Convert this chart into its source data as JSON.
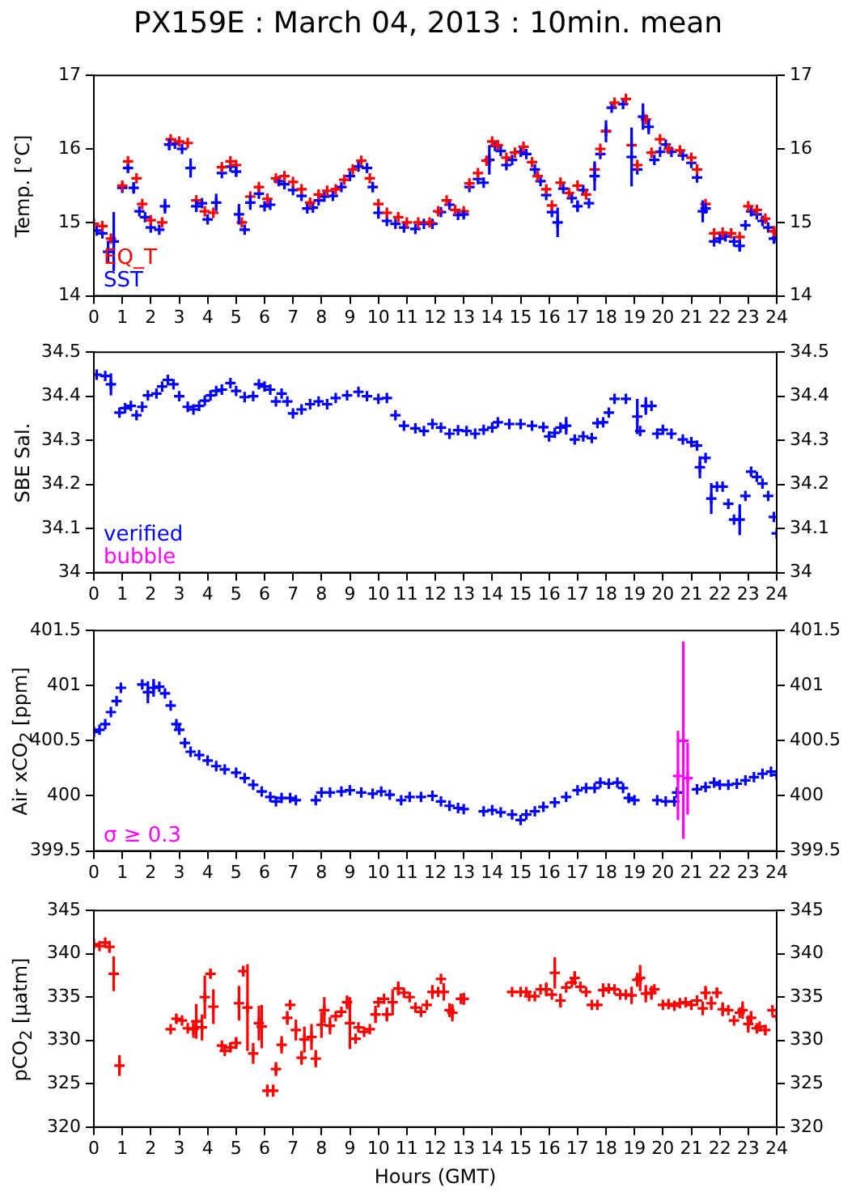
{
  "chart_data": [
    {
      "type": "scatter",
      "title": "PX159E : March 04, 2013 : 10min. mean",
      "ylabel": "Temp. [°C]",
      "xlim": [
        0,
        24
      ],
      "xticks": [
        0,
        1,
        2,
        3,
        4,
        5,
        6,
        7,
        8,
        9,
        10,
        11,
        12,
        13,
        14,
        15,
        16,
        17,
        18,
        19,
        20,
        21,
        22,
        23,
        24
      ],
      "ylim": [
        14,
        17
      ],
      "yticks": [
        14,
        15,
        16,
        17
      ],
      "y2lim": [
        14,
        17
      ],
      "y2ticks": [
        14,
        15,
        16,
        17
      ],
      "grid": false,
      "legend": "bottom left",
      "marker": "cross",
      "series": [
        {
          "name": "EQ_T",
          "color": "#ff0000",
          "x": [
            0,
            0.3,
            0.6,
            1.0,
            1.2,
            1.5,
            1.7,
            2.0,
            2.4,
            2.7,
            3.0,
            3.3,
            3.6,
            3.9,
            4.2,
            4.5,
            4.8,
            5.0,
            5.2,
            5.5,
            5.8,
            6.1,
            6.4,
            6.7,
            7.0,
            7.3,
            7.6,
            7.9,
            8.2,
            8.5,
            8.8,
            9.1,
            9.4,
            9.7,
            10.0,
            10.3,
            10.7,
            11.0,
            11.4,
            11.8,
            12.1,
            12.4,
            12.7,
            13.0,
            13.2,
            13.5,
            13.8,
            14.0,
            14.2,
            14.5,
            14.8,
            15.1,
            15.4,
            15.6,
            15.9,
            16.1,
            16.4,
            16.7,
            17.0,
            17.3,
            17.6,
            17.8,
            18.0,
            18.3,
            18.7,
            18.9,
            19.1,
            19.4,
            19.6,
            19.9,
            20.2,
            20.6,
            21.0,
            21.2,
            21.5,
            21.8,
            22.1,
            22.4,
            22.7,
            23.0,
            23.3,
            23.6,
            23.9,
            24.0
          ],
          "values": [
            14.98,
            14.95,
            14.78,
            15.5,
            15.83,
            15.6,
            15.25,
            15.03,
            15.0,
            16.13,
            16.1,
            16.08,
            15.3,
            15.15,
            15.13,
            15.75,
            15.83,
            15.78,
            15.0,
            15.35,
            15.48,
            15.32,
            15.6,
            15.63,
            15.55,
            15.45,
            15.27,
            15.38,
            15.43,
            15.45,
            15.58,
            15.72,
            15.84,
            15.6,
            15.25,
            15.13,
            15.07,
            15.0,
            15.0,
            15.0,
            15.15,
            15.3,
            15.17,
            15.15,
            15.53,
            15.67,
            15.84,
            16.1,
            16.05,
            15.88,
            15.95,
            16.03,
            15.82,
            15.63,
            15.45,
            15.23,
            15.54,
            15.4,
            15.5,
            15.38,
            15.72,
            16.0,
            16.24,
            16.63,
            16.68,
            16.05,
            15.78,
            16.4,
            15.95,
            16.13,
            16.0,
            15.98,
            15.88,
            15.72,
            15.25,
            14.85,
            14.86,
            14.85,
            14.8,
            15.22,
            15.17,
            15.05,
            14.88,
            14.87
          ]
        },
        {
          "name": "SST",
          "color": "#0000ff",
          "x": [
            0.1,
            0.3,
            0.5,
            0.7,
            1.0,
            1.2,
            1.4,
            1.6,
            1.8,
            2.0,
            2.3,
            2.5,
            2.65,
            2.85,
            3.1,
            3.4,
            3.6,
            3.8,
            4.0,
            4.3,
            4.5,
            4.8,
            5.0,
            5.1,
            5.3,
            5.5,
            5.8,
            6.0,
            6.2,
            6.5,
            6.7,
            7.0,
            7.3,
            7.5,
            7.7,
            7.9,
            8.1,
            8.4,
            8.7,
            9.0,
            9.3,
            9.6,
            9.8,
            10.0,
            10.3,
            10.6,
            10.9,
            11.3,
            11.6,
            11.9,
            12.2,
            12.5,
            12.8,
            13.0,
            13.2,
            13.5,
            13.7,
            13.9,
            14.1,
            14.3,
            14.5,
            14.7,
            15.0,
            15.2,
            15.5,
            15.7,
            15.9,
            16.1,
            16.3,
            16.5,
            16.8,
            17.0,
            17.2,
            17.4,
            17.6,
            17.8,
            18.0,
            18.2,
            18.6,
            18.9,
            19.1,
            19.3,
            19.5,
            19.7,
            19.9,
            20.1,
            20.3,
            20.7,
            21.0,
            21.2,
            21.4,
            21.5,
            21.8,
            22.0,
            22.2,
            22.5,
            22.7,
            22.9,
            23.1,
            23.3,
            23.5,
            23.7,
            23.9,
            24.0
          ],
          "values": [
            14.89,
            14.85,
            14.6,
            14.74,
            15.47,
            15.74,
            15.47,
            15.15,
            15.07,
            14.93,
            14.9,
            15.22,
            16.06,
            16.07,
            16.0,
            15.74,
            15.22,
            15.26,
            15.04,
            15.27,
            15.67,
            15.76,
            15.69,
            15.11,
            14.9,
            15.27,
            15.39,
            15.22,
            15.24,
            15.56,
            15.52,
            15.44,
            15.36,
            15.19,
            15.2,
            15.3,
            15.35,
            15.36,
            15.48,
            15.63,
            15.76,
            15.74,
            15.48,
            15.13,
            15.02,
            14.98,
            14.93,
            14.91,
            14.98,
            14.98,
            15.14,
            15.24,
            15.1,
            15.11,
            15.48,
            15.59,
            15.54,
            15.85,
            16.04,
            15.97,
            15.78,
            15.85,
            15.96,
            15.93,
            15.72,
            15.56,
            15.37,
            15.14,
            15.0,
            15.46,
            15.33,
            15.22,
            15.44,
            15.26,
            15.63,
            15.93,
            16.24,
            16.56,
            16.61,
            15.89,
            15.72,
            16.44,
            16.3,
            15.85,
            15.96,
            16.06,
            15.96,
            15.91,
            15.81,
            15.61,
            15.15,
            15.19,
            14.74,
            14.78,
            14.81,
            14.74,
            14.68,
            14.96,
            15.15,
            15.11,
            15.02,
            14.93,
            14.78,
            14.79
          ],
          "errors": [
            null,
            null,
            0.15,
            0.4,
            null,
            0.05,
            0.08,
            null,
            null,
            null,
            null,
            0.1,
            0.08,
            null,
            null,
            0.13,
            0.08,
            null,
            null,
            0.12,
            null,
            null,
            0.07,
            0.14,
            null,
            0.1,
            null,
            null,
            null,
            null,
            null,
            null,
            null,
            null,
            null,
            null,
            null,
            null,
            null,
            null,
            null,
            null,
            0.07,
            0.08,
            null,
            null,
            null,
            null,
            null,
            null,
            null,
            null,
            null,
            0.05,
            null,
            null,
            null,
            0.2,
            null,
            null,
            null,
            null,
            null,
            null,
            null,
            null,
            null,
            null,
            0.2,
            null,
            null,
            0.08,
            null,
            null,
            0.2,
            null,
            0.15,
            null,
            null,
            0.4,
            null,
            0.18,
            0.1,
            null,
            null,
            null,
            null,
            null,
            null,
            null,
            0.15,
            0.07,
            null,
            null,
            null,
            null,
            0.08,
            null,
            null,
            null,
            null,
            null,
            null,
            null
          ]
        }
      ]
    },
    {
      "type": "scatter",
      "ylabel": "SBE Sal.",
      "xlim": [
        0,
        24
      ],
      "xticks": [
        0,
        1,
        2,
        3,
        4,
        5,
        6,
        7,
        8,
        9,
        10,
        11,
        12,
        13,
        14,
        15,
        16,
        17,
        18,
        19,
        20,
        21,
        22,
        23,
        24
      ],
      "ylim": [
        34,
        34.5
      ],
      "yticks": [
        34,
        34.1,
        34.2,
        34.3,
        34.4,
        34.5
      ],
      "y2lim": [
        34,
        34.5
      ],
      "y2ticks": [
        34,
        34.1,
        34.2,
        34.3,
        34.4,
        34.5
      ],
      "grid": false,
      "legend": "bottom left",
      "marker": "cross",
      "series": [
        {
          "name": "verified",
          "color": "#0000ff",
          "x": [
            0.1,
            0.4,
            0.6,
            0.9,
            1.1,
            1.3,
            1.5,
            1.7,
            1.9,
            2.2,
            2.4,
            2.6,
            2.8,
            3.0,
            3.3,
            3.5,
            3.7,
            3.9,
            4.1,
            4.3,
            4.5,
            4.8,
            5.0,
            5.3,
            5.6,
            5.8,
            6.0,
            6.2,
            6.4,
            6.6,
            6.8,
            7.0,
            7.3,
            7.6,
            7.9,
            8.2,
            8.5,
            8.9,
            9.3,
            9.6,
            10.0,
            10.3,
            10.6,
            10.9,
            11.3,
            11.6,
            11.9,
            12.2,
            12.5,
            12.8,
            13.1,
            13.4,
            13.7,
            14.0,
            14.2,
            14.6,
            15.0,
            15.4,
            15.8,
            16.0,
            16.2,
            16.4,
            16.6,
            16.9,
            17.2,
            17.5,
            17.7,
            17.9,
            18.1,
            18.3,
            18.7,
            19.1,
            19.2,
            19.4,
            19.6,
            19.8,
            20.0,
            20.3,
            20.7,
            21.0,
            21.2,
            21.3,
            21.5,
            21.7,
            21.9,
            22.1,
            22.3,
            22.5,
            22.7,
            22.9,
            23.1,
            23.3,
            23.5,
            23.7,
            23.9,
            24.0
          ],
          "values": [
            34.449,
            34.446,
            34.427,
            34.363,
            34.373,
            34.378,
            34.357,
            34.376,
            34.402,
            34.406,
            34.422,
            34.437,
            34.427,
            34.4,
            34.376,
            34.37,
            34.378,
            34.39,
            34.402,
            34.412,
            34.415,
            34.43,
            34.412,
            34.398,
            34.4,
            34.427,
            34.422,
            34.415,
            34.388,
            34.406,
            34.388,
            34.361,
            34.37,
            34.382,
            34.388,
            34.382,
            34.396,
            34.402,
            34.41,
            34.4,
            34.394,
            34.396,
            34.357,
            34.333,
            34.327,
            34.321,
            34.337,
            34.329,
            34.315,
            34.323,
            34.321,
            34.315,
            34.324,
            34.329,
            34.341,
            34.337,
            34.337,
            34.333,
            34.33,
            34.309,
            34.317,
            34.329,
            34.333,
            34.302,
            34.309,
            34.305,
            34.339,
            34.341,
            34.363,
            34.394,
            34.394,
            34.354,
            34.321,
            34.378,
            34.378,
            34.315,
            34.324,
            34.315,
            34.302,
            34.296,
            34.288,
            34.239,
            34.26,
            34.168,
            34.195,
            34.195,
            34.156,
            34.12,
            34.12,
            34.174,
            34.229,
            34.217,
            34.202,
            34.174,
            34.126,
            34.089
          ],
          "errors": [
            null,
            null,
            0.025,
            null,
            null,
            null,
            null,
            null,
            null,
            null,
            null,
            null,
            null,
            null,
            null,
            null,
            null,
            null,
            null,
            null,
            null,
            null,
            null,
            null,
            null,
            null,
            null,
            null,
            null,
            null,
            null,
            null,
            null,
            null,
            null,
            null,
            null,
            null,
            null,
            null,
            null,
            null,
            null,
            null,
            null,
            null,
            null,
            null,
            null,
            null,
            null,
            null,
            null,
            null,
            null,
            null,
            null,
            null,
            null,
            null,
            null,
            null,
            0.02,
            null,
            null,
            null,
            null,
            null,
            null,
            null,
            null,
            0.04,
            null,
            0.02,
            null,
            null,
            null,
            null,
            null,
            null,
            null,
            0.025,
            null,
            0.035,
            null,
            null,
            null,
            null,
            0.035,
            null,
            null,
            null,
            null,
            null,
            null,
            null
          ]
        },
        {
          "name": "bubble",
          "color": "#ff00ff"
        }
      ]
    },
    {
      "type": "scatter",
      "ylabel": "Air xCO$_{2}$ [ppm]",
      "xlim": [
        0,
        24
      ],
      "xticks": [
        0,
        1,
        2,
        3,
        4,
        5,
        6,
        7,
        8,
        9,
        10,
        11,
        12,
        13,
        14,
        15,
        16,
        17,
        18,
        19,
        20,
        21,
        22,
        23,
        24
      ],
      "ylim": [
        399.5,
        401.5
      ],
      "yticks": [
        399.5,
        400,
        400.5,
        401,
        401.5
      ],
      "y2lim": [
        399.5,
        401.5
      ],
      "y2ticks": [
        399.5,
        400,
        400.5,
        401,
        401.5
      ],
      "grid": false,
      "legend": "bottom left",
      "marker": "cross",
      "series": [
        {
          "color": "#0000ff",
          "x": [
            0.0,
            0.2,
            0.4,
            0.6,
            0.8,
            0.95,
            1.7,
            1.9,
            2.1,
            2.3,
            2.5,
            2.7,
            2.9,
            3.0,
            3.2,
            3.4,
            3.7,
            4.0,
            4.3,
            4.6,
            5.0,
            5.3,
            5.6,
            5.9,
            6.2,
            6.4,
            6.6,
            6.9,
            7.1,
            7.8,
            8.0,
            8.3,
            8.7,
            9.0,
            9.4,
            9.8,
            10.1,
            10.4,
            10.8,
            11.1,
            11.5,
            11.9,
            12.2,
            12.5,
            12.8,
            13.0,
            13.7,
            14.0,
            14.3,
            14.7,
            15.0,
            15.2,
            15.5,
            15.8,
            16.2,
            16.6,
            17.0,
            17.3,
            17.6,
            17.8,
            18.1,
            18.4,
            18.6,
            18.8,
            19.0,
            19.8,
            20.1,
            20.4,
            20.5,
            21.2,
            21.5,
            21.8,
            22.0,
            22.3,
            22.6,
            22.9,
            23.2,
            23.5,
            23.8,
            24.0
          ],
          "values": [
            400.58,
            400.6,
            400.65,
            400.76,
            400.86,
            400.98,
            401.01,
            400.94,
            400.98,
            400.99,
            400.93,
            400.82,
            400.65,
            400.6,
            400.48,
            400.4,
            400.37,
            400.32,
            400.27,
            400.24,
            400.21,
            400.16,
            400.1,
            400.04,
            399.99,
            399.95,
            399.98,
            399.98,
            399.96,
            399.96,
            400.03,
            400.03,
            400.04,
            400.05,
            400.03,
            400.02,
            400.04,
            400.01,
            399.96,
            399.99,
            399.99,
            400.0,
            399.95,
            399.91,
            399.89,
            399.88,
            399.86,
            399.87,
            399.85,
            399.83,
            399.78,
            399.83,
            399.86,
            399.9,
            399.94,
            399.99,
            400.05,
            400.07,
            400.07,
            400.12,
            400.11,
            400.12,
            400.07,
            399.98,
            399.96,
            399.96,
            399.95,
            399.95,
            400.03,
            400.06,
            400.08,
            400.12,
            400.1,
            400.1,
            400.11,
            400.14,
            400.17,
            400.2,
            400.22,
            400.19
          ],
          "errors": [
            null,
            null,
            null,
            null,
            null,
            null,
            null,
            0.1,
            0.08,
            null,
            null,
            null,
            null,
            null,
            null,
            null,
            null,
            null,
            null,
            null,
            null,
            null,
            null,
            null,
            null,
            null,
            null,
            null,
            null,
            null,
            null,
            null,
            null,
            null,
            null,
            null,
            null,
            null,
            null,
            null,
            null,
            null,
            null,
            null,
            null,
            null,
            null,
            null,
            null,
            null,
            null,
            null,
            null,
            null,
            null,
            null,
            null,
            null,
            null,
            null,
            null,
            null,
            null,
            0.04,
            null,
            null,
            null,
            null,
            0.05,
            null,
            null,
            null,
            null,
            null,
            null,
            null,
            null,
            null,
            null,
            null
          ]
        },
        {
          "name": "σ ≥ 0.3",
          "color": "#ff00ff",
          "x": [
            20.53,
            20.72,
            20.87
          ],
          "values": [
            400.18,
            400.5,
            400.16
          ],
          "errors": [
            [
              399.78,
              400.59
            ],
            [
              399.61,
              401.4
            ],
            [
              399.83,
              400.48
            ]
          ]
        }
      ]
    },
    {
      "type": "scatter",
      "ylabel": "pCO$_{2}$ [µatm]",
      "xlabel": "Hours (GMT)",
      "xlim": [
        0,
        24
      ],
      "xticks": [
        0,
        1,
        2,
        3,
        4,
        5,
        6,
        7,
        8,
        9,
        10,
        11,
        12,
        13,
        14,
        15,
        16,
        17,
        18,
        19,
        20,
        21,
        22,
        23,
        24
      ],
      "ylim": [
        320,
        345
      ],
      "yticks": [
        320,
        325,
        330,
        335,
        340,
        345
      ],
      "y2lim": [
        320,
        345
      ],
      "y2ticks": [
        320,
        325,
        330,
        335,
        340,
        345
      ],
      "grid": false,
      "marker": "cross",
      "series": [
        {
          "color": "#ff0000",
          "x": [
            0.0,
            0.2,
            0.4,
            0.55,
            0.7,
            0.9,
            2.7,
            2.9,
            3.1,
            3.3,
            3.5,
            3.6,
            3.8,
            3.9,
            4.1,
            4.2,
            4.5,
            4.6,
            4.8,
            5.0,
            5.1,
            5.25,
            5.4,
            5.6,
            5.8,
            5.9,
            6.1,
            6.3,
            6.4,
            6.6,
            6.8,
            6.9,
            7.1,
            7.3,
            7.4,
            7.65,
            7.8,
            8.0,
            8.1,
            8.3,
            8.5,
            8.7,
            8.9,
            9.0,
            9.2,
            9.3,
            9.5,
            9.7,
            9.9,
            10.0,
            10.2,
            10.3,
            10.5,
            10.7,
            10.9,
            11.1,
            11.3,
            11.5,
            11.7,
            11.9,
            12.1,
            12.2,
            12.3,
            12.5,
            12.6,
            12.9,
            13.0,
            14.7,
            15.0,
            15.2,
            15.3,
            15.5,
            15.7,
            15.9,
            16.1,
            16.2,
            16.4,
            16.6,
            16.8,
            16.9,
            17.1,
            17.3,
            17.5,
            17.7,
            17.9,
            18.1,
            18.3,
            18.5,
            18.7,
            18.9,
            19.1,
            19.2,
            19.4,
            19.6,
            19.7,
            20.0,
            20.2,
            20.4,
            20.6,
            20.8,
            21.0,
            21.2,
            21.4,
            21.5,
            21.7,
            21.9,
            22.1,
            22.3,
            22.5,
            22.7,
            22.8,
            23.0,
            23.1,
            23.3,
            23.4,
            23.6,
            23.85,
            24.0
          ],
          "values": [
            341.1,
            340.9,
            341.3,
            340.8,
            337.7,
            327.1,
            331.3,
            332.5,
            332.3,
            331.4,
            331.3,
            332.2,
            331.5,
            335.0,
            337.7,
            333.9,
            329.4,
            328.8,
            329.2,
            329.7,
            334.3,
            338.0,
            333.8,
            328.5,
            332.0,
            331.6,
            324.2,
            324.2,
            326.7,
            329.5,
            332.6,
            334.1,
            331.2,
            328.0,
            330.1,
            330.4,
            327.9,
            331.8,
            333.5,
            331.7,
            332.8,
            333.3,
            334.4,
            332.0,
            330.2,
            331.5,
            331.0,
            331.3,
            333.0,
            334.4,
            334.8,
            333.0,
            334.4,
            336.0,
            335.5,
            335.0,
            333.8,
            333.3,
            334.1,
            335.6,
            335.6,
            337.1,
            335.6,
            333.5,
            333.2,
            334.8,
            334.8,
            335.6,
            335.6,
            335.6,
            335.1,
            335.1,
            335.9,
            335.9,
            335.3,
            337.8,
            334.6,
            336.1,
            336.7,
            337.2,
            336.2,
            335.6,
            334.1,
            334.1,
            335.8,
            336.0,
            335.9,
            335.3,
            335.3,
            335.2,
            337.0,
            337.2,
            335.4,
            335.5,
            335.9,
            334.1,
            334.2,
            334.0,
            334.3,
            334.4,
            334.1,
            334.6,
            333.7,
            335.5,
            334.3,
            335.5,
            333.6,
            333.5,
            332.3,
            333.2,
            333.5,
            331.9,
            332.6,
            331.4,
            331.6,
            331.2,
            333.5,
            332.8
          ],
          "errors": [
            null,
            null,
            null,
            0.7,
            2,
            1.2,
            null,
            0.5,
            null,
            null,
            1,
            2,
            1.5,
            2.5,
            0.5,
            2,
            null,
            null,
            0.5,
            0.7,
            2,
            0.6,
            5,
            1.2,
            2,
            2.5,
            0.7,
            0.7,
            0.8,
            1,
            0.8,
            null,
            1.2,
            0.8,
            1.5,
            1.5,
            1,
            1.5,
            1.5,
            1,
            null,
            null,
            0.8,
            3,
            null,
            null,
            null,
            null,
            1,
            null,
            null,
            0.8,
            1.5,
            0.8,
            null,
            null,
            null,
            null,
            null,
            0.8,
            null,
            null,
            1,
            0.8,
            1,
            null,
            0.7,
            null,
            null,
            null,
            null,
            null,
            null,
            0.8,
            null,
            1.8,
            0.8,
            null,
            null,
            0.8,
            null,
            null,
            null,
            null,
            0.8,
            null,
            null,
            null,
            null,
            1,
            0.8,
            1.5,
            1,
            0.8,
            null,
            null,
            null,
            null,
            null,
            null,
            null,
            null,
            0.8,
            0.8,
            0.8,
            0.6,
            0.8,
            null,
            null,
            null,
            1,
            1,
            0.8,
            null,
            null,
            0.6,
            null,
            null
          ]
        }
      ]
    }
  ]
}
